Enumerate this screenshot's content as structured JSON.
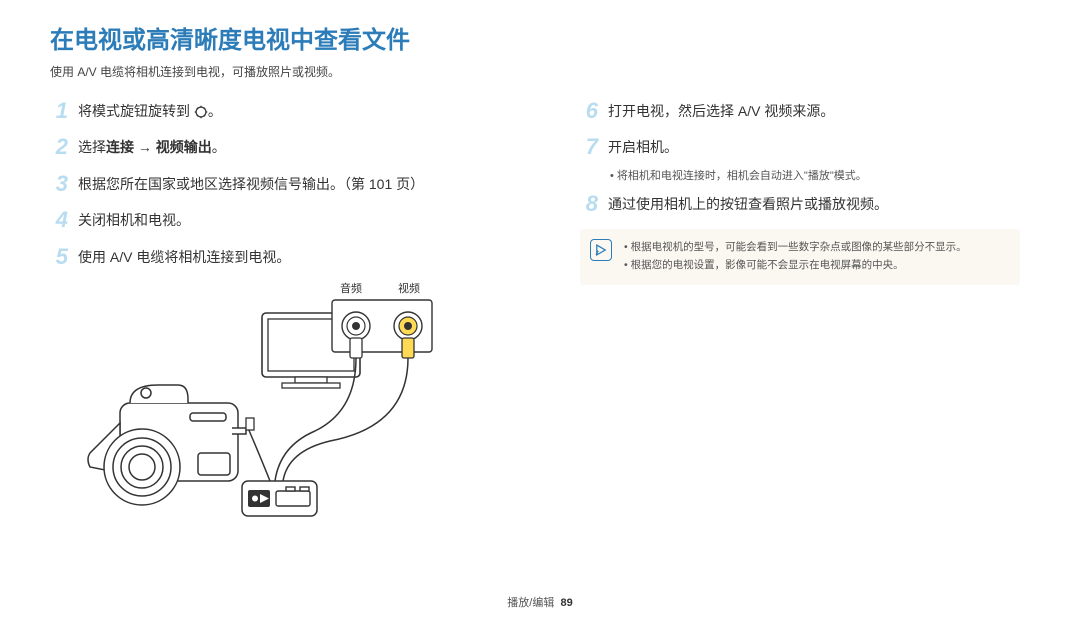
{
  "title": "在电视或高清晰度电视中查看文件",
  "subtitle": "使用 A/V 电缆将相机连接到电视，可播放照片或视频。",
  "left_steps": [
    {
      "n": "1",
      "html": "将模式旋钮旋转到 <svg class='gear-icon' viewBox='0 0 20 20'><circle cx='10' cy='10' r='7' fill='none' stroke='#333' stroke-width='1.8'/><path d='M10 3v-2M10 19v-2M3 10h-2M19 10h-2M5.5 5.5l-1.4-1.4M15.9 15.9l-1.4-1.4M5.5 14.5l-1.4 1.4M15.9 4.1l-1.4 1.4' stroke='#333' stroke-width='1.8'/></svg>。"
    },
    {
      "n": "2",
      "html": "选择<span class='bold'>连接 → 视频输出</span>。"
    },
    {
      "n": "3",
      "html": "根据您所在国家或地区选择视频信号输出。（第 101 页）"
    },
    {
      "n": "4",
      "html": "关闭相机和电视。"
    },
    {
      "n": "5",
      "html": "使用 A/V 电缆将相机连接到电视。"
    }
  ],
  "right_steps": [
    {
      "n": "6",
      "html": "打开电视，然后选择 A/V 视频来源。"
    },
    {
      "n": "7",
      "html": "开启相机。",
      "sub": "将相机和电视连接时，相机会自动进入\"播放\"模式。"
    },
    {
      "n": "8",
      "html": "通过使用相机上的按钮查看照片或播放视频。"
    }
  ],
  "note_lines": [
    "根据电视机的型号，可能会看到一些数字杂点或图像的某些部分不显示。",
    "根据您的电视设置，影像可能不会显示在电视屏幕的中央。"
  ],
  "labels": {
    "audio": "音频",
    "video": "视频"
  },
  "footer": {
    "section": "播放/编辑",
    "page": "89"
  },
  "colors": {
    "title": "#2b7cb8",
    "stepnum": "#b8dcf0",
    "notebox": "#faf8f1"
  }
}
